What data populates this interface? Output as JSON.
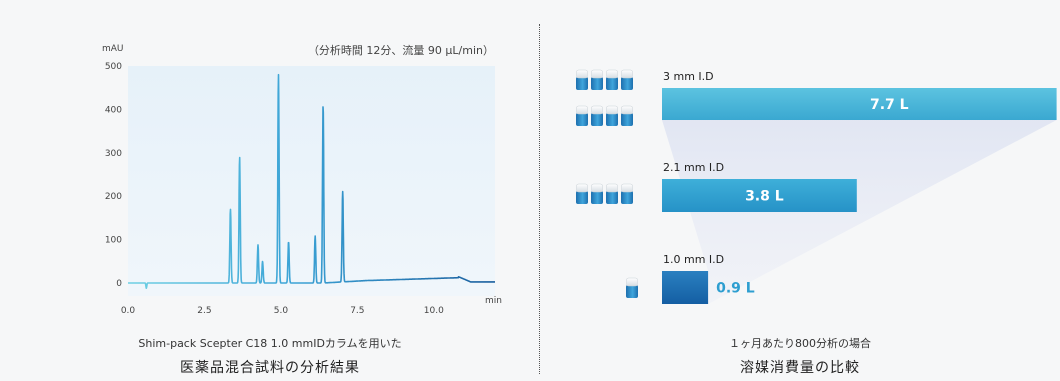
{
  "left": {
    "chart_data": {
      "type": "line",
      "ylabel": "mAU",
      "xlabel_unit": "min",
      "note": "（分析時間 12分、流量 90 μL/min）",
      "xlim": [
        0,
        12
      ],
      "ylim": [
        -30,
        500
      ],
      "xticks": [
        "0.0",
        "2.5",
        "5.0",
        "7.5",
        "10.0"
      ],
      "xtick_values": [
        0,
        2.5,
        5,
        7.5,
        10
      ],
      "yticks": [
        "500",
        "400",
        "300",
        "200",
        "100",
        "0"
      ],
      "ytick_values": [
        500,
        400,
        300,
        200,
        100,
        0
      ],
      "peaks": [
        {
          "x": 3.35,
          "y": 170
        },
        {
          "x": 3.65,
          "y": 290
        },
        {
          "x": 4.25,
          "y": 88
        },
        {
          "x": 4.4,
          "y": 50
        },
        {
          "x": 4.92,
          "y": 480
        },
        {
          "x": 5.25,
          "y": 95
        },
        {
          "x": 6.12,
          "y": 108
        },
        {
          "x": 6.38,
          "y": 410
        },
        {
          "x": 7.02,
          "y": 208
        }
      ],
      "dip": {
        "x": 0.6,
        "y": -12
      }
    },
    "caption_line1": "Shim-pack Scepter C18 1.0 mmIDカラムを用いた",
    "caption_line2": "医薬品混合試料の分析結果"
  },
  "right": {
    "chart_data": {
      "type": "bar",
      "categories": [
        "3 mm I.D",
        "2.1 mm I.D",
        "1.0 mm I.D"
      ],
      "values": [
        7.7,
        3.8,
        0.9
      ],
      "value_labels": [
        "7.7 L",
        "3.8 L",
        "0.9 L"
      ],
      "bottle_counts": [
        8,
        4,
        1
      ],
      "colors": [
        "#49b6d6",
        "#2d9ed0",
        "#1a6fb4"
      ]
    },
    "caption_line1": "１ヶ月あたり800分析の場合",
    "caption_line2": "溶媒消費量の比較"
  }
}
